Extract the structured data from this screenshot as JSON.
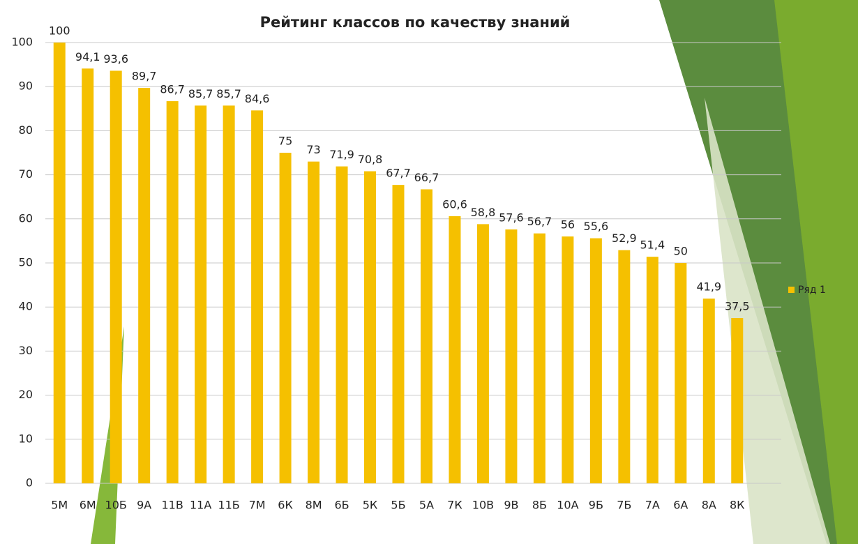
{
  "chart_data": {
    "type": "bar",
    "title": "Рейтинг классов по качеству знаний",
    "categories": [
      "5М",
      "6М",
      "10Б",
      "9А",
      "11В",
      "11А",
      "11Б",
      "7М",
      "6К",
      "8М",
      "6Б",
      "5К",
      "5Б",
      "5А",
      "7К",
      "10В",
      "9В",
      "8Б",
      "10А",
      "9Б",
      "7Б",
      "7А",
      "6А",
      "8А",
      "8К"
    ],
    "series": [
      {
        "name": "Ряд 1",
        "color": "#f5c000",
        "values": [
          100,
          94.1,
          93.6,
          89.7,
          86.7,
          85.7,
          85.7,
          84.6,
          75,
          73,
          71.9,
          70.8,
          67.7,
          66.7,
          60.6,
          58.8,
          57.6,
          56.7,
          56,
          55.6,
          52.9,
          51.4,
          50,
          41.9,
          37.5
        ],
        "value_labels": [
          "100",
          "94,1",
          "93,6",
          "89,7",
          "86,7",
          "85,7",
          "85,7",
          "84,6",
          "75",
          "73",
          "71,9",
          "70,8",
          "67,7",
          "66,7",
          "60,6",
          "58,8",
          "57,6",
          "56,7",
          "56",
          "55,6",
          "52,9",
          "51,4",
          "50",
          "41,9",
          "37,5"
        ]
      }
    ],
    "ylim": [
      0,
      100
    ],
    "yticks": [
      0,
      10,
      20,
      30,
      40,
      50,
      60,
      70,
      80,
      90,
      100
    ],
    "grid": true,
    "legend": "right"
  }
}
